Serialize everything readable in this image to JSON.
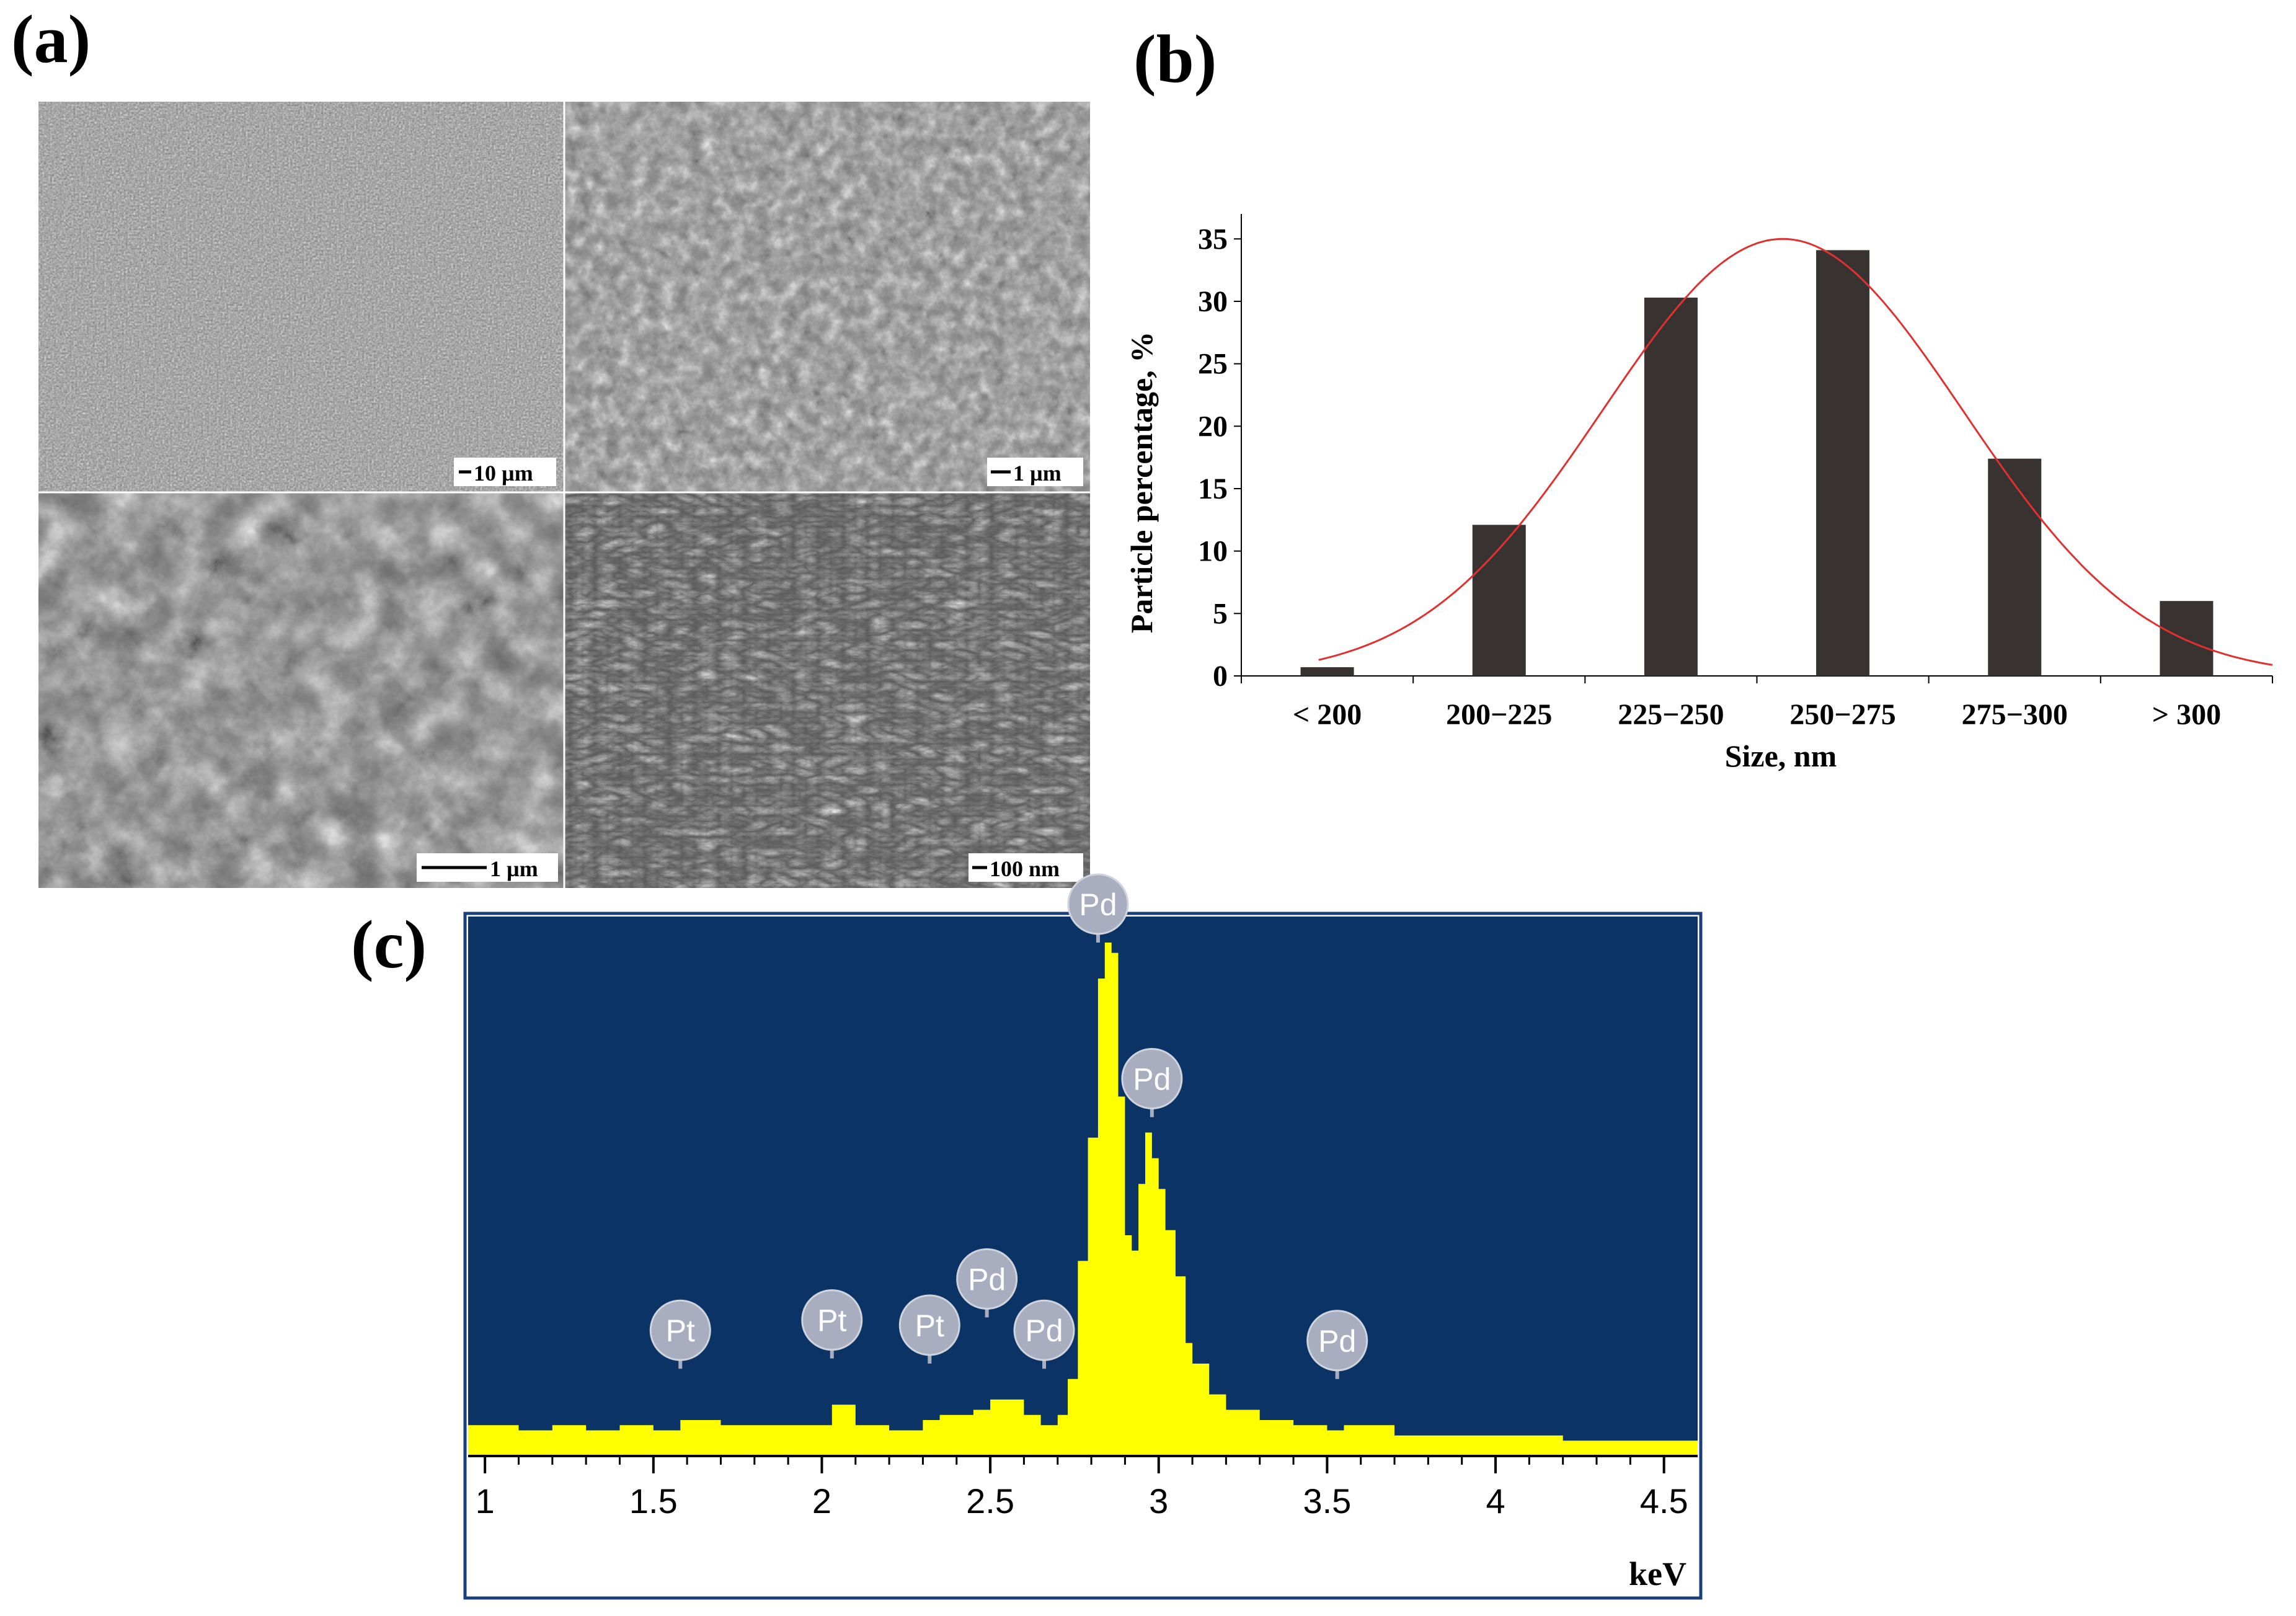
{
  "panels": {
    "a_label": "(a)",
    "b_label": "(b)",
    "c_label": "(c)"
  },
  "sem": {
    "images": [
      {
        "scale_bar": "10 µm"
      },
      {
        "scale_bar": "1 µm"
      },
      {
        "scale_bar": "1 µm"
      },
      {
        "scale_bar": "100 nm"
      }
    ]
  },
  "chart_data": [
    {
      "type": "bar",
      "panel": "(b)",
      "categories": [
        "< 200",
        "200−225",
        "225−250",
        "250−275",
        "275−300",
        "> 300"
      ],
      "values": [
        0.7,
        12.1,
        30.3,
        34.1,
        17.4,
        6.0
      ],
      "ylabel": "Particle percentage, %",
      "xlabel": "Size, nm",
      "ylim": [
        0,
        37
      ],
      "yticks": [
        0,
        5,
        10,
        15,
        20,
        25,
        30,
        35
      ],
      "fit_curve": {
        "type": "gaussian",
        "color": "#e03030",
        "peak_category_position": 2.65,
        "peak_value": 35.0,
        "sigma_categories": 1.05
      },
      "colors": {
        "bar": "#383231"
      }
    },
    {
      "type": "area",
      "panel": "(c)",
      "xlabel": "keV",
      "xlim": [
        0.95,
        4.6
      ],
      "xticks": [
        "1",
        "1.5",
        "2",
        "2.5",
        "3",
        "3.5",
        "4",
        "4.5"
      ],
      "ylim": [
        0,
        100
      ],
      "x": [
        0.95,
        1.0,
        1.1,
        1.2,
        1.3,
        1.4,
        1.5,
        1.58,
        1.7,
        1.8,
        1.9,
        2.0,
        2.03,
        2.1,
        2.2,
        2.3,
        2.35,
        2.45,
        2.5,
        2.6,
        2.65,
        2.7,
        2.73,
        2.76,
        2.79,
        2.82,
        2.84,
        2.86,
        2.88,
        2.9,
        2.92,
        2.94,
        2.96,
        2.98,
        3.0,
        3.02,
        3.05,
        3.08,
        3.1,
        3.15,
        3.2,
        3.3,
        3.4,
        3.5,
        3.55,
        3.7,
        3.9,
        4.0,
        4.2,
        4.4,
        4.55
      ],
      "values": [
        6,
        6,
        5,
        6,
        5,
        6,
        5,
        7,
        6,
        6,
        6,
        6,
        10,
        6,
        5,
        7,
        8,
        9,
        11,
        8,
        6,
        8,
        15,
        38,
        62,
        93,
        100,
        98,
        70,
        43,
        40,
        53,
        63,
        58,
        52,
        44,
        35,
        22,
        18,
        12,
        9,
        7,
        6,
        5,
        6,
        4,
        4,
        4,
        3,
        3,
        3
      ],
      "peak_labels": [
        {
          "text": "Pt",
          "x": 1.58,
          "y": 17
        },
        {
          "text": "Pt",
          "x": 2.03,
          "y": 19
        },
        {
          "text": "Pt",
          "x": 2.32,
          "y": 18
        },
        {
          "text": "Pd",
          "x": 2.49,
          "y": 27
        },
        {
          "text": "Pd",
          "x": 2.66,
          "y": 17
        },
        {
          "text": "Pd",
          "x": 2.82,
          "y": 100
        },
        {
          "text": "Pd",
          "x": 2.98,
          "y": 66
        },
        {
          "text": "Pd",
          "x": 3.53,
          "y": 15
        }
      ],
      "colors": {
        "background": "#0b3366",
        "fill": "#ffff00",
        "peak_badge": "#a8aec0"
      }
    }
  ]
}
